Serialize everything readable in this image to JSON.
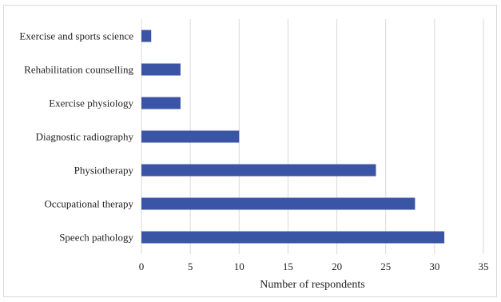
{
  "chart_data": {
    "type": "bar",
    "orientation": "horizontal",
    "categories": [
      "Exercise and sports science",
      "Rehabilitation counselling",
      "Exercise physiology",
      "Diagnostic radiography",
      "Physiotherapy",
      "Occupational therapy",
      "Speech pathology"
    ],
    "values": [
      1,
      4,
      4,
      10,
      24,
      28,
      31
    ],
    "xlabel": "Number of respondents",
    "ylabel": "",
    "title": "",
    "xlim": [
      0,
      35
    ],
    "xticks": [
      0,
      5,
      10,
      15,
      20,
      25,
      30,
      35
    ],
    "grid": "vertical",
    "bar_color": "#3a55a5"
  }
}
